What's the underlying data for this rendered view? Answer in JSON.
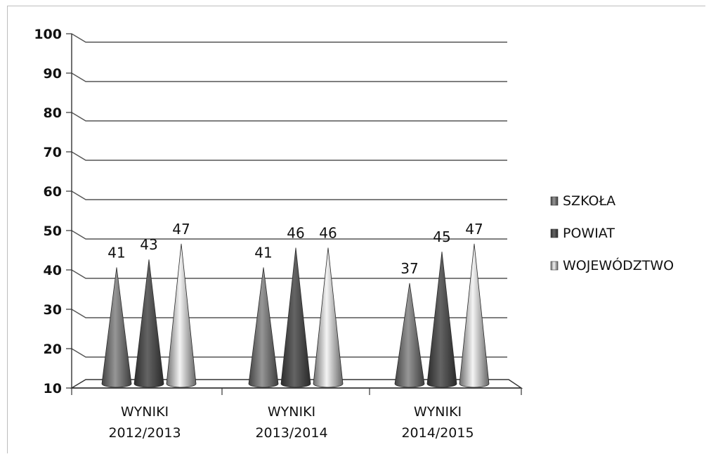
{
  "chart_data": {
    "type": "bar",
    "style": "3d-cone",
    "title": "",
    "xlabel": "",
    "ylabel": "",
    "ylim": [
      10,
      100
    ],
    "yticks": [
      10,
      20,
      30,
      40,
      50,
      60,
      70,
      80,
      90,
      100
    ],
    "grid": true,
    "legend_position": "right",
    "categories": [
      [
        "WYNIKI",
        "2012/2013"
      ],
      [
        "WYNIKI",
        "2013/2014"
      ],
      [
        "WYNIKI",
        "2014/2015"
      ]
    ],
    "series": [
      {
        "name": "SZKOŁA",
        "color": "#6f6f6f",
        "values": [
          41,
          41,
          37
        ]
      },
      {
        "name": "POWIAT",
        "color": "#4a4a4a",
        "values": [
          43,
          46,
          45
        ]
      },
      {
        "name": "WOJEWÓDZTWO",
        "color": "#b5b5b5",
        "values": [
          47,
          46,
          47
        ]
      }
    ]
  }
}
